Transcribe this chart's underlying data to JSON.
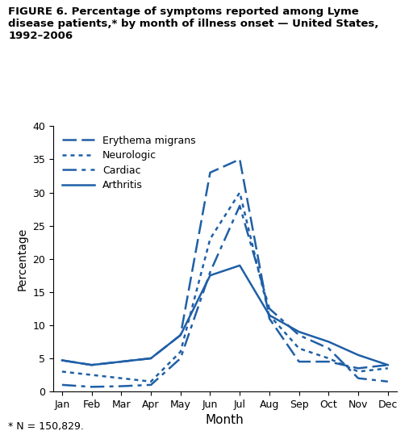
{
  "months": [
    "Jan",
    "Feb",
    "Mar",
    "Apr",
    "May",
    "Jun",
    "Jul",
    "Aug",
    "Sep",
    "Oct",
    "Nov",
    "Dec"
  ],
  "erythema_migrans": [
    4.7,
    4.0,
    4.5,
    5.0,
    8.5,
    33.0,
    35.0,
    11.0,
    4.5,
    4.5,
    3.5,
    4.0
  ],
  "neurologic": [
    3.0,
    2.5,
    2.0,
    1.5,
    6.0,
    23.0,
    30.0,
    11.5,
    6.5,
    5.0,
    3.0,
    3.5
  ],
  "cardiac": [
    1.0,
    0.7,
    0.8,
    1.0,
    5.0,
    18.0,
    28.0,
    12.5,
    8.5,
    6.5,
    2.0,
    1.5
  ],
  "arthritis": [
    4.7,
    4.0,
    4.5,
    5.0,
    8.5,
    17.5,
    19.0,
    11.5,
    9.0,
    7.5,
    5.5,
    4.0
  ],
  "color": "#1f5fa6",
  "title": "FIGURE 6. Percentage of symptoms reported among Lyme\ndisease patients,* by month of illness onset — United States,\n1992–2006",
  "ylabel": "Percentage",
  "xlabel": "Month",
  "footnote": "* N = 150,829.",
  "ylim": [
    0,
    40
  ],
  "yticks": [
    0,
    5,
    10,
    15,
    20,
    25,
    30,
    35,
    40
  ],
  "legend_labels": [
    "Erythema migrans",
    "Neurologic",
    "Cardiac",
    "Arthritis"
  ]
}
